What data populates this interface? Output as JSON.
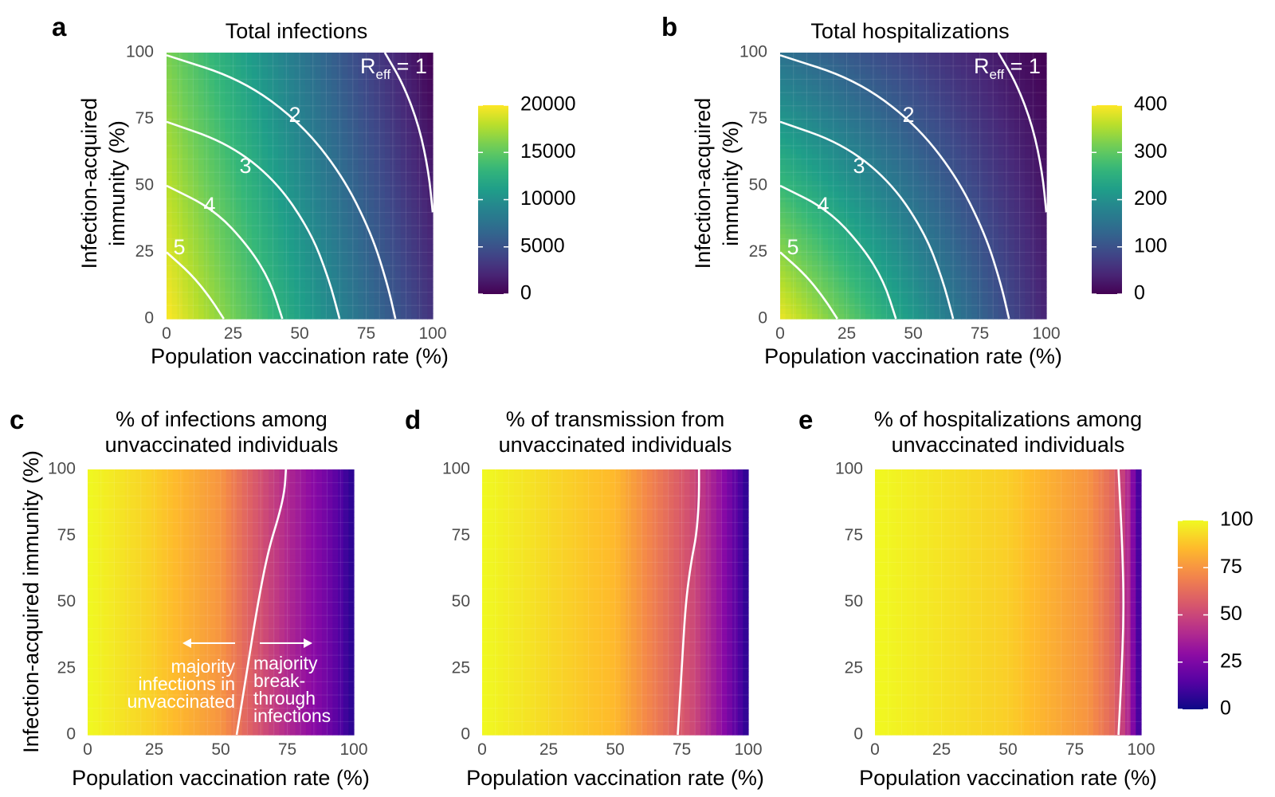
{
  "chart_data": [
    {
      "id": "a",
      "type": "heatmap",
      "panel_letter": "a",
      "title": "Total infections",
      "xlabel": "Population vaccination rate (%)",
      "ylabel": "Infection-acquired immunity (%)",
      "xlim": [
        0,
        100
      ],
      "ylim": [
        0,
        100
      ],
      "x_ticks": [
        "0",
        "25",
        "50",
        "75",
        "100"
      ],
      "y_ticks": [
        "0",
        "25",
        "50",
        "75",
        "100"
      ],
      "colormap": "viridis",
      "value_range": [
        0,
        20000
      ],
      "colorbar_ticks": [
        "0",
        "5000",
        "10000",
        "15000",
        "20000"
      ],
      "corner_values": {
        "x0_y0": 20000,
        "x100_y0": 3000,
        "x0_y100": 16000,
        "x100_y100": 0
      },
      "contour_lines": [
        {
          "label": "5",
          "points": [
            [
              0,
              25
            ],
            [
              9,
              17
            ],
            [
              16,
              8.5
            ],
            [
              21.5,
              0
            ]
          ]
        },
        {
          "label": "4",
          "points": [
            [
              0,
              50
            ],
            [
              18,
              41
            ],
            [
              31,
              27
            ],
            [
              39,
              14
            ],
            [
              43.5,
              0
            ]
          ]
        },
        {
          "label": "3",
          "points": [
            [
              0,
              74
            ],
            [
              23,
              66
            ],
            [
              41,
              52
            ],
            [
              54,
              33
            ],
            [
              61,
              15
            ],
            [
              65,
              0
            ]
          ]
        },
        {
          "label": "2",
          "points": [
            [
              0,
              99
            ],
            [
              28,
              90
            ],
            [
              50,
              74
            ],
            [
              66,
              54
            ],
            [
              77,
              32
            ],
            [
              83,
              13
            ],
            [
              86,
              0
            ]
          ]
        },
        {
          "label_prefix": "R",
          "label_sub": "eff",
          "label_suffix": " = 1",
          "points": [
            [
              82,
              100
            ],
            [
              89,
              88
            ],
            [
              95,
              72
            ],
            [
              98.5,
              55
            ],
            [
              100,
              40
            ]
          ]
        }
      ]
    },
    {
      "id": "b",
      "type": "heatmap",
      "panel_letter": "b",
      "title": "Total hospitalizations",
      "xlabel": "Population vaccination rate (%)",
      "ylabel": "Infection-acquired immunity (%)",
      "xlim": [
        0,
        100
      ],
      "ylim": [
        0,
        100
      ],
      "x_ticks": [
        "0",
        "25",
        "50",
        "75",
        "100"
      ],
      "y_ticks": [
        "0",
        "25",
        "50",
        "75",
        "100"
      ],
      "colormap": "viridis",
      "value_range": [
        0,
        400
      ],
      "colorbar_ticks": [
        "0",
        "100",
        "200",
        "300",
        "400"
      ],
      "corner_values": {
        "x0_y0": 390,
        "x100_y0": 40,
        "x0_y100": 150,
        "x100_y100": 0
      },
      "contour_lines": [
        {
          "label": "5",
          "points": [
            [
              0,
              25
            ],
            [
              9,
              17
            ],
            [
              16,
              8.5
            ],
            [
              21.5,
              0
            ]
          ]
        },
        {
          "label": "4",
          "points": [
            [
              0,
              50
            ],
            [
              18,
              41
            ],
            [
              31,
              27
            ],
            [
              39,
              14
            ],
            [
              43.5,
              0
            ]
          ]
        },
        {
          "label": "3",
          "points": [
            [
              0,
              74
            ],
            [
              23,
              66
            ],
            [
              41,
              52
            ],
            [
              54,
              33
            ],
            [
              61,
              15
            ],
            [
              65,
              0
            ]
          ]
        },
        {
          "label": "2",
          "points": [
            [
              0,
              99
            ],
            [
              28,
              90
            ],
            [
              50,
              74
            ],
            [
              66,
              54
            ],
            [
              77,
              32
            ],
            [
              83,
              13
            ],
            [
              86,
              0
            ]
          ]
        },
        {
          "label_prefix": "R",
          "label_sub": "eff",
          "label_suffix": " = 1",
          "points": [
            [
              82,
              100
            ],
            [
              89,
              88
            ],
            [
              95,
              72
            ],
            [
              98.5,
              55
            ],
            [
              100,
              40
            ]
          ]
        }
      ]
    },
    {
      "id": "c",
      "type": "heatmap",
      "panel_letter": "c",
      "title": [
        "% of infections among",
        "unvaccinated individuals"
      ],
      "xlabel": "Population vaccination rate (%)",
      "ylabel": "Infection-acquired immunity (%)",
      "xlim": [
        0,
        100
      ],
      "ylim": [
        0,
        100
      ],
      "x_ticks": [
        "0",
        "25",
        "50",
        "75",
        "100"
      ],
      "y_ticks": [
        "0",
        "25",
        "50",
        "75",
        "100"
      ],
      "colormap": "plasma",
      "value_range": [
        0,
        100
      ],
      "value_by_vaccination": [
        [
          0,
          100
        ],
        [
          25,
          90
        ],
        [
          50,
          75
        ],
        [
          60,
          60
        ],
        [
          75,
          40
        ],
        [
          90,
          22
        ],
        [
          100,
          5
        ]
      ],
      "contour_lines": [
        {
          "label": "",
          "points": [
            [
              56,
              0
            ],
            [
              60,
              25
            ],
            [
              64,
              50
            ],
            [
              68,
              70
            ],
            [
              72,
              83
            ],
            [
              74,
              92
            ],
            [
              74.5,
              100
            ]
          ]
        }
      ],
      "annotations": {
        "left_text": [
          "majority",
          "infections in",
          "unvaccinated"
        ],
        "right_text": [
          "majority",
          "break-",
          "through",
          "infections"
        ]
      }
    },
    {
      "id": "d",
      "type": "heatmap",
      "panel_letter": "d",
      "title": [
        "% of transmission from",
        "unvaccinated individuals"
      ],
      "xlabel": "Population vaccination rate (%)",
      "xlim": [
        0,
        100
      ],
      "ylim": [
        0,
        100
      ],
      "x_ticks": [
        "0",
        "25",
        "50",
        "75",
        "100"
      ],
      "y_ticks": [
        "0",
        "25",
        "50",
        "75",
        "100"
      ],
      "colormap": "plasma",
      "value_range": [
        0,
        100
      ],
      "value_by_vaccination": [
        [
          0,
          100
        ],
        [
          50,
          85
        ],
        [
          70,
          62
        ],
        [
          80,
          50
        ],
        [
          90,
          30
        ],
        [
          100,
          5
        ]
      ],
      "contour_lines": [
        {
          "label": "",
          "points": [
            [
              73.5,
              0
            ],
            [
              75,
              25
            ],
            [
              76.5,
              50
            ],
            [
              78.5,
              65
            ],
            [
              80.5,
              75
            ],
            [
              81.5,
              88
            ],
            [
              81.5,
              100
            ]
          ]
        }
      ]
    },
    {
      "id": "e",
      "type": "heatmap",
      "panel_letter": "e",
      "title": [
        "% of hospitalizations among",
        "unvaccinated individuals"
      ],
      "xlabel": "Population vaccination rate (%)",
      "xlim": [
        0,
        100
      ],
      "ylim": [
        0,
        100
      ],
      "x_ticks": [
        "0",
        "25",
        "50",
        "75",
        "100"
      ],
      "y_ticks": [
        "0",
        "25",
        "50",
        "75",
        "100"
      ],
      "colormap": "plasma",
      "value_range": [
        0,
        100
      ],
      "colorbar_ticks": [
        "0",
        "25",
        "50",
        "75",
        "100"
      ],
      "value_by_vaccination": [
        [
          0,
          100
        ],
        [
          50,
          90
        ],
        [
          80,
          75
        ],
        [
          90,
          60
        ],
        [
          95,
          40
        ],
        [
          100,
          5
        ]
      ],
      "contour_lines": [
        {
          "label": "",
          "points": [
            [
              91.5,
              0
            ],
            [
              92.5,
              20
            ],
            [
              93.5,
              45
            ],
            [
              93,
              70
            ],
            [
              91.5,
              100
            ]
          ]
        }
      ]
    }
  ]
}
